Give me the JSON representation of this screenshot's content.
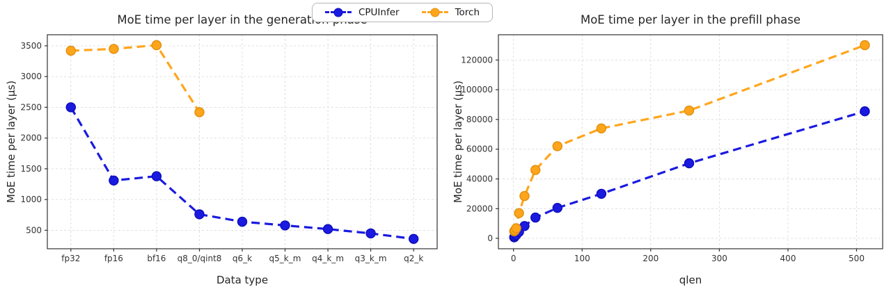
{
  "figure": {
    "background": "#ffffff"
  },
  "legend": {
    "items": [
      {
        "label": "CPUInfer",
        "color": "#1a1ae0",
        "edge": "#0d0db8"
      },
      {
        "label": "Torch",
        "color": "#ffa51c",
        "edge": "#df8f0a"
      }
    ]
  },
  "chart_data": [
    {
      "type": "line",
      "title": "MoE time per layer in the generation phase",
      "xlabel": "Data type",
      "ylabel": "MoE time per layer (µs)",
      "categories": [
        "fp32",
        "fp16",
        "bf16",
        "q8_0/qint8",
        "q6_k",
        "q5_k_m",
        "q4_k_m",
        "q3_k_m",
        "q2_k"
      ],
      "yticks": [
        500,
        1000,
        1500,
        2000,
        2500,
        3000,
        3500
      ],
      "ylim": [
        200,
        3680
      ],
      "grid": true,
      "line_style": "dashed",
      "marker": "circle",
      "legend_position": "figure-top-center",
      "series": [
        {
          "name": "CPUInfer",
          "values": [
            2500,
            1310,
            1380,
            760,
            640,
            580,
            520,
            450,
            360
          ]
        },
        {
          "name": "Torch",
          "values": [
            3420,
            3450,
            3510,
            2420,
            null,
            null,
            null,
            null,
            null
          ]
        }
      ]
    },
    {
      "type": "line",
      "title": "MoE time per layer in the prefill phase",
      "xlabel": "qlen",
      "ylabel": "MoE time per layer (µs)",
      "x": [
        1,
        2,
        4,
        8,
        16,
        32,
        64,
        128,
        256,
        512
      ],
      "xticks": [
        0,
        100,
        200,
        300,
        400,
        500
      ],
      "xlim": [
        -22,
        538
      ],
      "yticks": [
        0,
        20000,
        40000,
        60000,
        80000,
        100000,
        120000
      ],
      "ylim": [
        -7000,
        137000
      ],
      "grid": true,
      "line_style": "dashed",
      "marker": "circle",
      "series": [
        {
          "name": "CPUInfer",
          "values": [
            700,
            1300,
            2300,
            4300,
            8300,
            14000,
            20500,
            30000,
            50500,
            85500
          ]
        },
        {
          "name": "Torch",
          "values": [
            4800,
            5400,
            6800,
            17000,
            28500,
            46000,
            62000,
            74000,
            86000,
            130000
          ]
        }
      ]
    }
  ]
}
